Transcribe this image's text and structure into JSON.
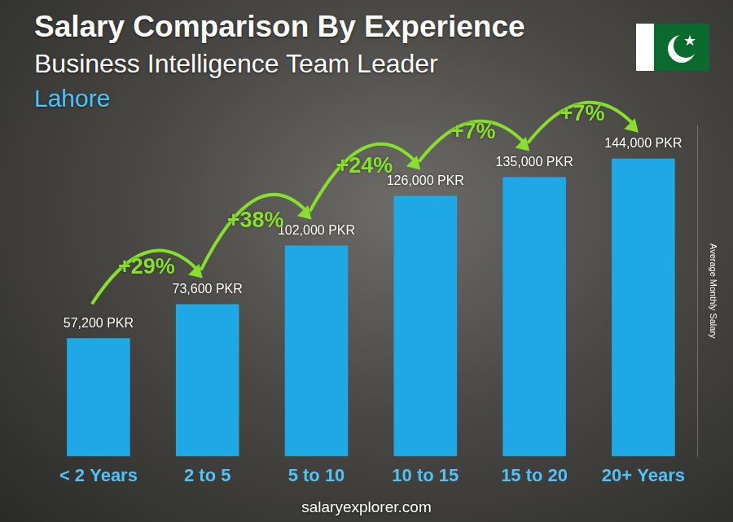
{
  "chart_data": {
    "type": "bar",
    "title": "Salary Comparison By Experience",
    "subtitle": "Business Intelligence Team Leader",
    "location": "Lahore",
    "y_label": "Average Monthly Salary",
    "source": "salaryexplorer.com",
    "categories": [
      "< 2 Years",
      "2 to 5",
      "5 to 10",
      "10 to 15",
      "15 to 20",
      "20+ Years"
    ],
    "values": [
      57200,
      73600,
      102000,
      126000,
      135000,
      144000
    ],
    "value_labels": [
      "57,200 PKR",
      "73,600 PKR",
      "102,000 PKR",
      "126,000 PKR",
      "135,000 PKR",
      "144,000 PKR"
    ],
    "annotations": [
      "+29%",
      "+38%",
      "+24%",
      "+7%",
      "+7%"
    ],
    "color": "#1ea8e6",
    "ylim": [
      0,
      160000
    ],
    "yticks": [],
    "grid": false,
    "data_labels": true,
    "tick_labels": "x"
  }
}
